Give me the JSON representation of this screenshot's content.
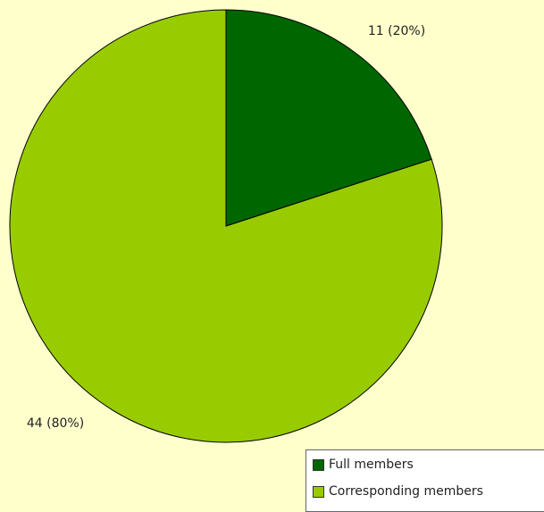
{
  "chart_data": {
    "type": "pie",
    "slices": [
      {
        "label": "Full members",
        "value": 11,
        "percent": 20,
        "data_label": "11 (20%)",
        "color": "#006600"
      },
      {
        "label": "Corresponding members",
        "value": 44,
        "percent": 80,
        "data_label": "44 (80%)",
        "color": "#99cc00"
      }
    ],
    "legend_placement": "bottom-right",
    "background_color": "#ffffcc",
    "start_angle": "12 o'clock, clockwise"
  },
  "legend": {
    "items": [
      {
        "label": "Full members",
        "color": "#006600"
      },
      {
        "label": "Corresponding members",
        "color": "#99cc00"
      }
    ]
  }
}
